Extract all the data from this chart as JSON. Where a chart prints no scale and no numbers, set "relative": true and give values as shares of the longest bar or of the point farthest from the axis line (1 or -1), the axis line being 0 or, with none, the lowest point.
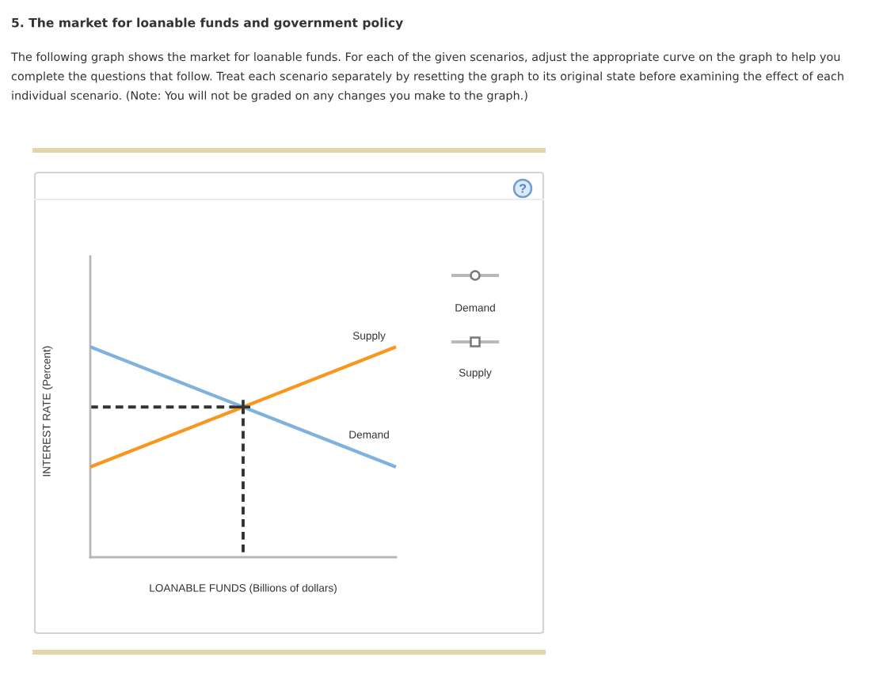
{
  "chart_data": {
    "type": "line",
    "title": "5. The market for loanable funds and government policy",
    "subtitle": "The following graph shows the market for loanable funds. For each of the given scenarios, adjust the appropriate curve on the graph to help you complete the questions that follow. Treat each scenario separately by resetting the graph to its original state before examining the effect of each individual scenario. (Note: You will not be graded on any changes you make to the graph.)",
    "xlabel": "LOANABLE FUNDS (Billions of dollars)",
    "ylabel": "INTEREST RATE (Percent)",
    "annotations": [
      "Demand",
      "Supply"
    ],
    "relative": true,
    "categories": [
      null,
      null,
      null
    ],
    "series": [
      {
        "name": "Demand",
        "color": "#7fb2dd",
        "values": [
          1,
          0.714,
          0.429
        ]
      },
      {
        "name": "Supply",
        "color": "#f9961e",
        "values": [
          0.429,
          0.714,
          1
        ]
      },
      {
        "type": "step",
        "line_style": "dashed",
        "color": "#333333",
        "values": [
          0.714,
          0,
          null
        ]
      },
      {
        "marker": "cross",
        "color": "#333333",
        "values": [
          null,
          0.714,
          null
        ]
      }
    ]
  }
}
